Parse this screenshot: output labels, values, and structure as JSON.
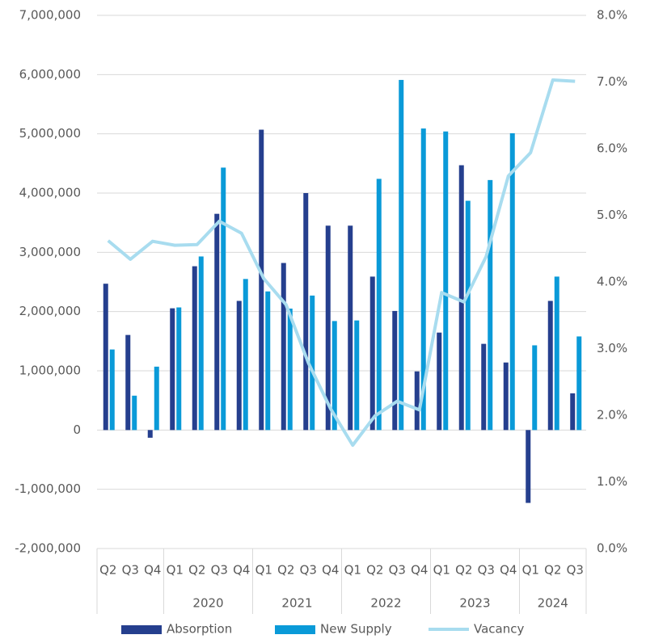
{
  "chart_data": {
    "type": "bar",
    "categories": [
      "Q2",
      "Q3",
      "Q4",
      "Q1",
      "Q2",
      "Q3",
      "Q4",
      "Q1",
      "Q2",
      "Q3",
      "Q4",
      "Q1",
      "Q2",
      "Q3",
      "Q4",
      "Q1",
      "Q2",
      "Q3",
      "Q4",
      "Q1",
      "Q2",
      "Q3"
    ],
    "groups": [
      {
        "label": null,
        "span": 3
      },
      {
        "label": "2020",
        "span": 4
      },
      {
        "label": "2021",
        "span": 4
      },
      {
        "label": "2022",
        "span": 4
      },
      {
        "label": "2023",
        "span": 4
      },
      {
        "label": "2024",
        "span": 3
      }
    ],
    "series": [
      {
        "name": "Absorption",
        "type": "bar",
        "color": "#253f8e",
        "values": [
          2470000,
          1605000,
          -130000,
          2055000,
          2765000,
          3650000,
          2180000,
          5070000,
          2820000,
          4000000,
          3450000,
          3450000,
          2590000,
          2010000,
          990000,
          1645000,
          4470000,
          1455000,
          1140000,
          -1230000,
          2180000,
          620000
        ]
      },
      {
        "name": "New Supply",
        "type": "bar",
        "color": "#0a9ad8",
        "values": [
          1360000,
          580000,
          1070000,
          2070000,
          2930000,
          4430000,
          2550000,
          2340000,
          2050000,
          2270000,
          1840000,
          1850000,
          4240000,
          5910000,
          5090000,
          5040000,
          3870000,
          4220000,
          5010000,
          1430000,
          2590000,
          1580000
        ]
      },
      {
        "name": "Vacancy",
        "type": "line",
        "axis": "y2",
        "color": "#a8dcef",
        "values": [
          4.62,
          4.34,
          4.61,
          4.55,
          4.56,
          4.91,
          4.73,
          4.05,
          3.66,
          2.79,
          2.1,
          1.55,
          1.99,
          2.21,
          2.08,
          3.84,
          3.7,
          4.38,
          5.59,
          5.94,
          7.03,
          7.01
        ]
      }
    ],
    "ylim": [
      -2000000,
      7000000
    ],
    "yticks": [
      {
        "value": -2000000,
        "label": "-2,000,000"
      },
      {
        "value": -1000000,
        "label": "-1,000,000"
      },
      0,
      {
        "value": 1000000,
        "label": "1,000,000"
      },
      {
        "value": 2000000,
        "label": "2,000,000"
      },
      {
        "value": 3000000,
        "label": "3,000,000"
      },
      {
        "value": 4000000,
        "label": "4,000,000"
      },
      {
        "value": 5000000,
        "label": "5,000,000"
      },
      {
        "value": 6000000,
        "label": "6,000,000"
      },
      {
        "value": 7000000,
        "label": "7,000,000"
      }
    ],
    "y2lim": [
      0,
      8
    ],
    "y2ticks": [
      {
        "value": 0,
        "label": "0.0%"
      },
      {
        "value": 1,
        "label": "1.0%"
      },
      {
        "value": 2,
        "label": "2.0%"
      },
      {
        "value": 3,
        "label": "3.0%"
      },
      {
        "value": 4,
        "label": "4.0%"
      },
      {
        "value": 5,
        "label": "5.0%"
      },
      {
        "value": 6,
        "label": "6.0%"
      },
      {
        "value": 7,
        "label": "7.0%"
      },
      {
        "value": 8,
        "label": "8.0%"
      }
    ],
    "grid": true
  }
}
